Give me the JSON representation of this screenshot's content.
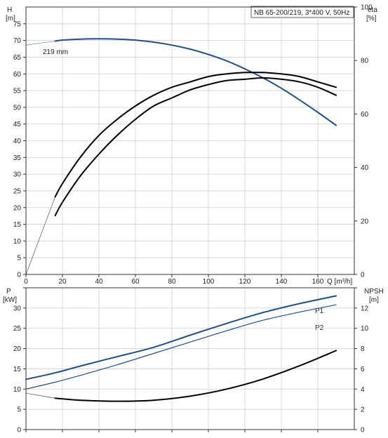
{
  "chart_data": [
    {
      "type": "line",
      "title": "NB 65-200/219, 3*400 V, 50Hz",
      "y_left_label": [
        "H",
        "[m]"
      ],
      "y_right_label": [
        "eta",
        "[%]"
      ],
      "xlabel": "Q [m³/h]",
      "xlim": [
        0,
        180
      ],
      "x_ticks": [
        "0",
        "20",
        "40",
        "60",
        "80",
        "100",
        "120",
        "140",
        "160"
      ],
      "y_left_ticks": [
        "0",
        "5",
        "10",
        "15",
        "20",
        "25",
        "30",
        "35",
        "40",
        "45",
        "50",
        "55",
        "60",
        "65",
        "70",
        "75"
      ],
      "y_right_ticks": [
        "0",
        "20",
        "40",
        "60",
        "80",
        "100"
      ],
      "ylim_left": [
        0,
        80
      ],
      "ylim_right": [
        0,
        100
      ],
      "grid": true,
      "curve_label": "219 mm",
      "series": [
        {
          "color": "#1f4f87",
          "axis": "left",
          "x": [
            16,
            20,
            30,
            40,
            50,
            60,
            70,
            80,
            90,
            100,
            110,
            120,
            130,
            140,
            150,
            160,
            170
          ],
          "y": [
            69.8,
            70.1,
            70.4,
            70.5,
            70.4,
            70.1,
            69.5,
            68.6,
            67.4,
            65.8,
            63.9,
            61.5,
            58.8,
            55.7,
            52.2,
            48.5,
            44.6
          ]
        },
        {
          "color": "#1f4f87",
          "axis": "left",
          "dim": true,
          "x": [
            0,
            16
          ],
          "y": [
            68.6,
            69.8
          ]
        },
        {
          "color": "#000000",
          "axis": "right",
          "x": [
            16,
            20,
            30,
            40,
            50,
            60,
            70,
            80,
            90,
            100,
            110,
            120,
            130,
            140,
            150,
            160,
            170
          ],
          "y": [
            29,
            34,
            44,
            52,
            58,
            63,
            67,
            70,
            72,
            74,
            75,
            75.5,
            75.5,
            75,
            74,
            72,
            70
          ]
        },
        {
          "color": "#000000",
          "axis": "right",
          "x": [
            16,
            20,
            30,
            40,
            50,
            60,
            70,
            80,
            90,
            100,
            110,
            120,
            130,
            140,
            150,
            160,
            170
          ],
          "y": [
            22,
            27,
            37,
            45,
            52,
            58,
            63,
            66,
            69,
            71,
            72.5,
            73,
            73.5,
            73,
            72,
            70,
            67
          ]
        },
        {
          "color": "#000000",
          "axis": "right",
          "dim": true,
          "x": [
            0,
            16
          ],
          "y": [
            0,
            29
          ]
        }
      ]
    },
    {
      "type": "line",
      "y_left_label": [
        "P",
        "[kW]"
      ],
      "y_right_label": [
        "NPSH",
        "[m]"
      ],
      "xlim": [
        0,
        180
      ],
      "y_left_ticks": [
        "0",
        "5",
        "10",
        "15",
        "20",
        "25",
        "30"
      ],
      "y_right_ticks": [
        "0",
        "2",
        "4",
        "6",
        "8",
        "10",
        "12"
      ],
      "ylim_left": [
        0,
        35
      ],
      "ylim_right": [
        0,
        14
      ],
      "grid": true,
      "series": [
        {
          "name": "P1",
          "color": "#1f4f87",
          "width": 2,
          "axis": "left",
          "x": [
            0,
            16,
            30,
            50,
            70,
            90,
            110,
            130,
            150,
            170
          ],
          "y": [
            12.4,
            14.0,
            15.7,
            18.0,
            20.3,
            23.3,
            26.2,
            28.9,
            31.1,
            33.0
          ]
        },
        {
          "name": "P2",
          "color": "#1f4f87",
          "width": 1.2,
          "axis": "left",
          "x": [
            0,
            16,
            30,
            50,
            70,
            90,
            110,
            130,
            150,
            170
          ],
          "y": [
            10.0,
            11.7,
            13.4,
            16.0,
            18.8,
            21.6,
            24.4,
            27.0,
            29.0,
            30.8
          ]
        },
        {
          "color": "#000000",
          "width": 2,
          "axis": "right",
          "x": [
            16,
            30,
            50,
            70,
            90,
            110,
            130,
            150,
            170
          ],
          "y": [
            3.1,
            2.9,
            2.8,
            2.9,
            3.3,
            4.0,
            5.0,
            6.3,
            7.8
          ]
        },
        {
          "color": "#000000",
          "width": 0.8,
          "dim": true,
          "axis": "right",
          "x": [
            0,
            16
          ],
          "y": [
            3.6,
            3.1
          ]
        }
      ]
    }
  ]
}
